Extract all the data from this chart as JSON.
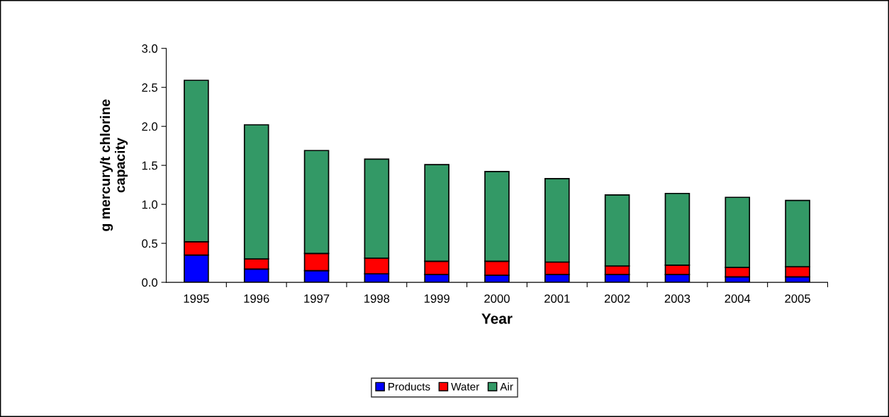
{
  "chart_data": {
    "type": "bar",
    "stacked": true,
    "xlabel": "Year",
    "ylabel": "g mercury/t chlorine\ncapacity",
    "categories": [
      "1995",
      "1996",
      "1997",
      "1998",
      "1999",
      "2000",
      "2001",
      "2002",
      "2003",
      "2004",
      "2005"
    ],
    "series": [
      {
        "name": "Products",
        "color": "#0000ff",
        "values": [
          0.35,
          0.17,
          0.15,
          0.11,
          0.1,
          0.09,
          0.1,
          0.1,
          0.1,
          0.07,
          0.07
        ]
      },
      {
        "name": "Water",
        "color": "#ff0000",
        "values": [
          0.17,
          0.13,
          0.22,
          0.2,
          0.17,
          0.18,
          0.16,
          0.11,
          0.12,
          0.12,
          0.13
        ]
      },
      {
        "name": "Air",
        "color": "#339966",
        "values": [
          2.07,
          1.72,
          1.32,
          1.27,
          1.24,
          1.15,
          1.07,
          0.91,
          0.92,
          0.9,
          0.85
        ]
      }
    ],
    "ylim": [
      0,
      3.0
    ],
    "yticks": [
      {
        "value": 0,
        "label": "0.0"
      },
      {
        "value": 0.5,
        "label": "0.5"
      },
      {
        "value": 1.0,
        "label": "1.0"
      },
      {
        "value": 1.5,
        "label": "1.5"
      },
      {
        "value": 2.0,
        "label": "2.0"
      },
      {
        "value": 2.5,
        "label": "2.5"
      },
      {
        "value": 3.0,
        "label": "3.0"
      }
    ],
    "grid": false,
    "legend": "bottom"
  }
}
